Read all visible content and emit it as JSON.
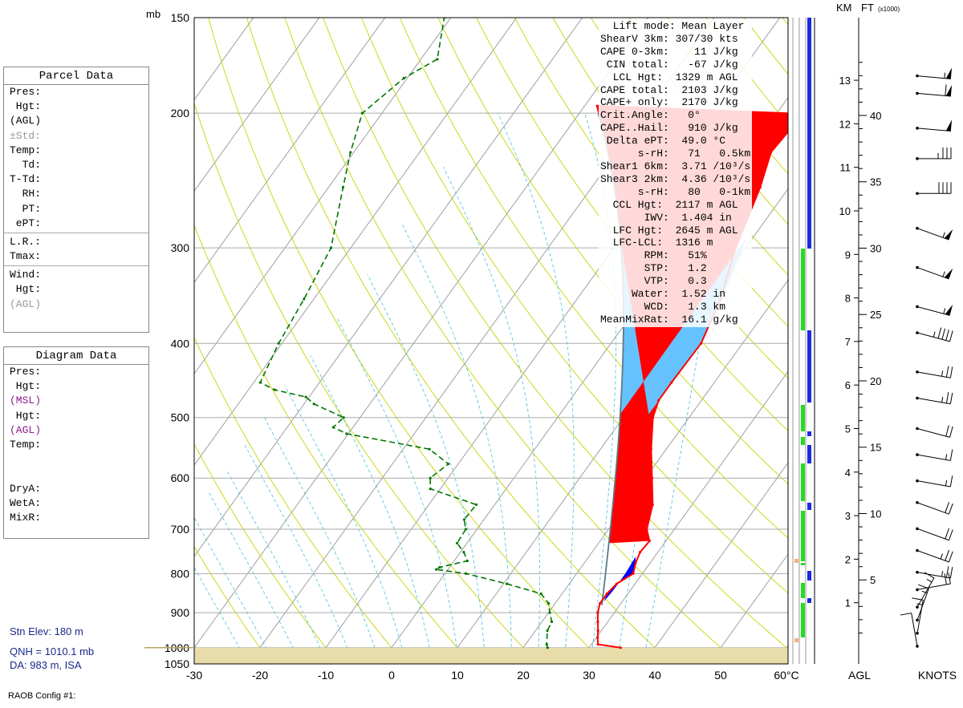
{
  "parcel_panel": {
    "title": "Parcel Data",
    "rows": [
      "Pres:",
      " Hgt:",
      "(AGL)",
      "±Std:",
      "Temp:",
      "  Td:",
      "T-Td:",
      "  RH:",
      "  PT:",
      " ePT:"
    ],
    "rows2": [
      "L.R.:",
      "Tmax:"
    ],
    "rows3": [
      "Wind:",
      " Hgt:",
      "(AGL)"
    ]
  },
  "diagram_panel": {
    "title": "Diagram Data",
    "rows": [
      "Pres:",
      " Hgt:",
      "(MSL)",
      " Hgt:",
      "(AGL)",
      "Temp:",
      "",
      "",
      "DryA:",
      "WetA:",
      "MixR:"
    ]
  },
  "station": {
    "elev": "Stn Elev: 180 m",
    "qnh": "QNH = 1010.1 mb",
    "da": "DA: 983 m, ISA"
  },
  "footer": {
    "config": "RAOB Config #1:"
  },
  "indices": [
    "  Lift mode: Mean Layer",
    "ShearV 3km: 307/30 kts",
    "CAPE 0-3km:    11 J/kg",
    " CIN total:   -67 J/kg",
    "  LCL Hgt:  1329 m AGL",
    "CAPE total:  2103 J/kg",
    "CAPE+ only:  2170 J/kg",
    "Crit.Angle:   0°",
    "CAPE..Hail:   910 J/kg",
    " Delta ePT:  49.0 °C",
    "      s-rH:   71   0.5km",
    "Shear1 6km:  3.71 /10³/s",
    "Shear3 2km:  4.36 /10³/s",
    "      s-rH:   80   0-1km",
    "  CCL Hgt:  2117 m AGL",
    "       IWV:  1.404 in",
    "  LFC Hgt:  2645 m AGL",
    "  LFC-LCL:  1316 m",
    "       RPM:   51%",
    "       STP:   1.2",
    "       VTP:   0.3",
    "     Water:  1.52 in",
    "       WCD:   1.3 km",
    "MeanMixRat:  16.1 g/kg"
  ],
  "chart_data": {
    "type": "line",
    "x_axis": {
      "label": "°C",
      "ticks": [
        -30,
        -20,
        -10,
        0,
        10,
        20,
        30,
        40,
        50,
        60
      ],
      "last_tick_label": "60°C"
    },
    "y_axis": {
      "label": "mb",
      "log_scale": true,
      "ticks": [
        150,
        200,
        300,
        400,
        500,
        600,
        700,
        800,
        900,
        1000,
        1050
      ]
    },
    "height_axis": {
      "km_label": "KM",
      "ft_label": "FT",
      "ft_unit": "(x1000)",
      "agl_label": "AGL",
      "km_ticks": [
        1,
        2,
        3,
        4,
        5,
        6,
        7,
        8,
        9,
        10,
        11,
        12,
        13
      ],
      "ft_ticks": [
        5,
        10,
        15,
        20,
        25,
        30,
        35,
        40
      ]
    },
    "wind_label": "KNOTS",
    "colors": {
      "temperature": "#ff0000",
      "dewpoint": "#007700",
      "cape": "#ff0000",
      "cin": "#0000ff",
      "cape_upper": "#66c2ff",
      "top": "#00ffff",
      "ground": "#e8dcaa"
    },
    "series": [
      {
        "points": [
          [
            1000,
            34.8
          ],
          [
            990,
            31
          ],
          [
            970,
            30.2
          ],
          [
            950,
            29.5
          ],
          [
            925,
            28.5
          ],
          [
            900,
            27.5
          ],
          [
            875,
            26.8
          ],
          [
            850,
            26.8
          ],
          [
            825,
            27.2
          ],
          [
            800,
            28.6
          ],
          [
            775,
            27.8
          ],
          [
            750,
            27.3
          ],
          [
            725,
            27.5
          ],
          [
            700,
            25.8
          ],
          [
            650,
            24.0
          ],
          [
            600,
            21.0
          ],
          [
            550,
            17.7
          ],
          [
            500,
            14.5
          ],
          [
            475,
            13.5
          ],
          [
            450,
            13.5
          ],
          [
            400,
            13.7
          ],
          [
            350,
            11.8
          ],
          [
            300,
            8.5
          ],
          [
            250,
            5.6
          ],
          [
            225,
            3.4
          ],
          [
            210,
            3.8
          ],
          [
            200,
            4.5
          ],
          [
            180,
            3.0
          ],
          [
            170,
            2.0
          ],
          [
            160,
            2.5
          ],
          [
            150,
            0.2
          ]
        ]
      },
      {
        "points": [
          [
            1000,
            23.7
          ],
          [
            990,
            23.2
          ],
          [
            950,
            21.8
          ],
          [
            925,
            21.5
          ],
          [
            900,
            20.2
          ],
          [
            875,
            19.0
          ],
          [
            850,
            16.8
          ],
          [
            825,
            10.5
          ],
          [
            800,
            3.2
          ],
          [
            790,
            -1.8
          ],
          [
            785,
            -1.5
          ],
          [
            770,
            2.0
          ],
          [
            750,
            0.5
          ],
          [
            730,
            -1.5
          ],
          [
            700,
            -1.7
          ],
          [
            680,
            -3.0
          ],
          [
            650,
            -2.8
          ],
          [
            620,
            -11.5
          ],
          [
            600,
            -12.7
          ],
          [
            575,
            -11.5
          ],
          [
            550,
            -16.0
          ],
          [
            525,
            -30.3
          ],
          [
            515,
            -33.0
          ],
          [
            500,
            -32.5
          ],
          [
            480,
            -38.5
          ],
          [
            470,
            -40.5
          ],
          [
            460,
            -46.0
          ],
          [
            450,
            -49.0
          ],
          [
            400,
            -50.5
          ],
          [
            350,
            -51.5
          ],
          [
            300,
            -53.0
          ],
          [
            250,
            -57.8
          ],
          [
            225,
            -60.5
          ],
          [
            200,
            -63.0
          ],
          [
            180,
            -60.5
          ],
          [
            170,
            -57.5
          ],
          [
            150,
            -61.0
          ]
        ]
      }
    ],
    "winds": [
      {
        "km": 0.0,
        "dir": 170,
        "spd": 10
      },
      {
        "km": 0.3,
        "dir": 190,
        "spd": 15
      },
      {
        "km": 0.6,
        "dir": 200,
        "spd": 15
      },
      {
        "km": 0.9,
        "dir": 210,
        "spd": 15
      },
      {
        "km": 1.3,
        "dir": 260,
        "spd": 20
      },
      {
        "km": 1.7,
        "dir": 280,
        "spd": 25
      },
      {
        "km": 2.2,
        "dir": 290,
        "spd": 25
      },
      {
        "km": 2.7,
        "dir": 290,
        "spd": 20
      },
      {
        "km": 3.3,
        "dir": 290,
        "spd": 20
      },
      {
        "km": 3.8,
        "dir": 280,
        "spd": 15
      },
      {
        "km": 4.4,
        "dir": 280,
        "spd": 15
      },
      {
        "km": 5.0,
        "dir": 285,
        "spd": 20
      },
      {
        "km": 5.7,
        "dir": 280,
        "spd": 25
      },
      {
        "km": 6.3,
        "dir": 280,
        "spd": 25
      },
      {
        "km": 7.2,
        "dir": 285,
        "spd": 45
      },
      {
        "km": 7.8,
        "dir": 285,
        "spd": 55
      },
      {
        "km": 8.7,
        "dir": 290,
        "spd": 55
      },
      {
        "km": 9.6,
        "dir": 290,
        "spd": 55
      },
      {
        "km": 10.4,
        "dir": 270,
        "spd": 40
      },
      {
        "km": 11.2,
        "dir": 270,
        "spd": 35
      },
      {
        "km": 11.9,
        "dir": 275,
        "spd": 50
      },
      {
        "km": 12.7,
        "dir": 275,
        "spd": 60
      },
      {
        "km": 13.1,
        "dir": 275,
        "spd": 55
      }
    ]
  }
}
